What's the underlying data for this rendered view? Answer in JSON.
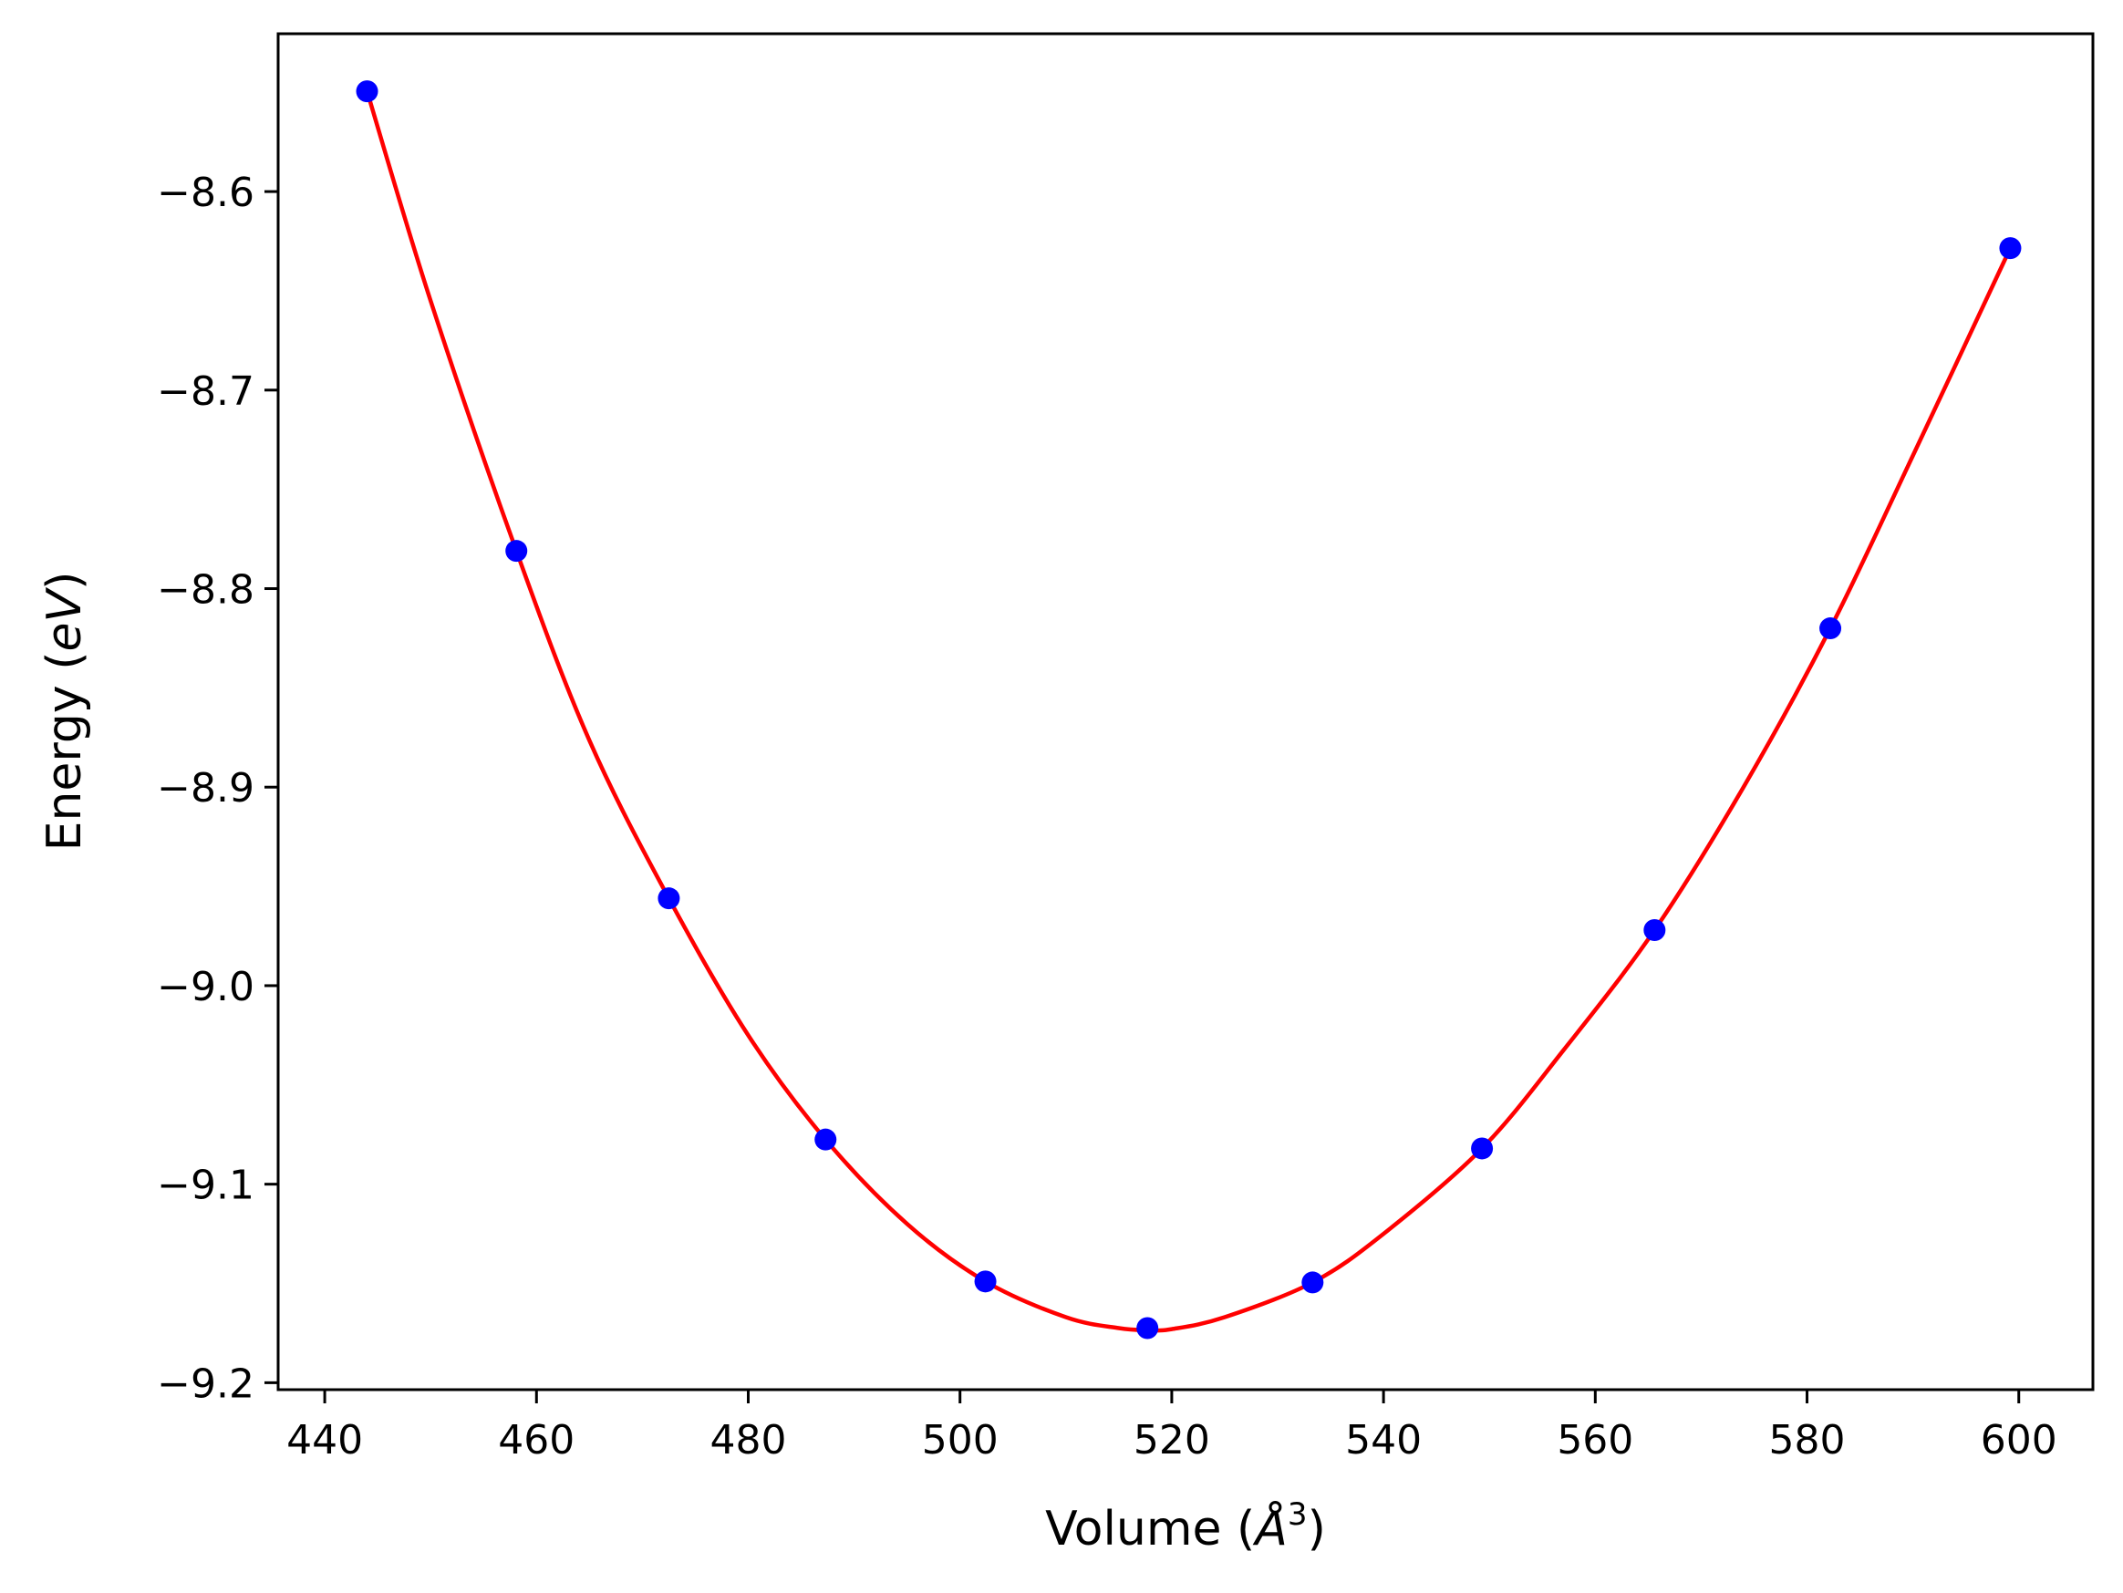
{
  "chart_data": {
    "type": "scatter",
    "title": "",
    "xlabel": {
      "prefix": "Volume (",
      "symbol": "Å",
      "superscript": "3",
      "suffix": ")"
    },
    "ylabel": {
      "prefix": "Energy (",
      "unit": "eV",
      "suffix": ")"
    },
    "xlim": [
      435.6,
      607.0
    ],
    "ylim": [
      -9.2035,
      -8.5205
    ],
    "x_ticks": [
      440,
      460,
      480,
      500,
      520,
      540,
      560,
      580,
      600
    ],
    "x_tick_labels": [
      "440",
      "460",
      "480",
      "500",
      "520",
      "540",
      "560",
      "580",
      "600"
    ],
    "y_ticks": [
      -8.6,
      -8.7,
      -8.8,
      -8.9,
      -9.0,
      -9.1,
      -9.2
    ],
    "y_tick_labels": [
      "−8.6",
      "−8.7",
      "−8.8",
      "−8.9",
      "−9.0",
      "−9.1",
      "−9.2"
    ],
    "grid": false,
    "series": [
      {
        "kind": "points",
        "color": "#0000ff",
        "x": [
          444.0,
          458.1,
          472.5,
          487.3,
          502.4,
          517.7,
          533.3,
          549.3,
          565.6,
          582.2,
          599.2
        ],
        "y": [
          -8.5495,
          -8.781,
          -8.956,
          -9.0775,
          -9.149,
          -9.1725,
          -9.1495,
          -9.082,
          -8.972,
          -8.82,
          -8.6285
        ]
      },
      {
        "kind": "fit-curve",
        "color": "#ff0000",
        "x": [
          444.0,
          450.0,
          458.1,
          465.0,
          472.5,
          480.0,
          487.3,
          495.0,
          502.4,
          510.0,
          515.0,
          517.7,
          520.0,
          525.0,
          533.3,
          540.0,
          549.3,
          557.0,
          565.6,
          574.0,
          582.2,
          590.0,
          599.2
        ],
        "y": [
          -8.5495,
          -8.655,
          -8.781,
          -8.8765,
          -8.956,
          -9.025,
          -9.0775,
          -9.12,
          -9.149,
          -9.167,
          -9.1725,
          -9.1735,
          -9.173,
          -9.167,
          -9.1495,
          -9.125,
          -9.082,
          -9.0325,
          -8.972,
          -8.9,
          -8.82,
          -8.733,
          -8.6285
        ]
      }
    ]
  }
}
